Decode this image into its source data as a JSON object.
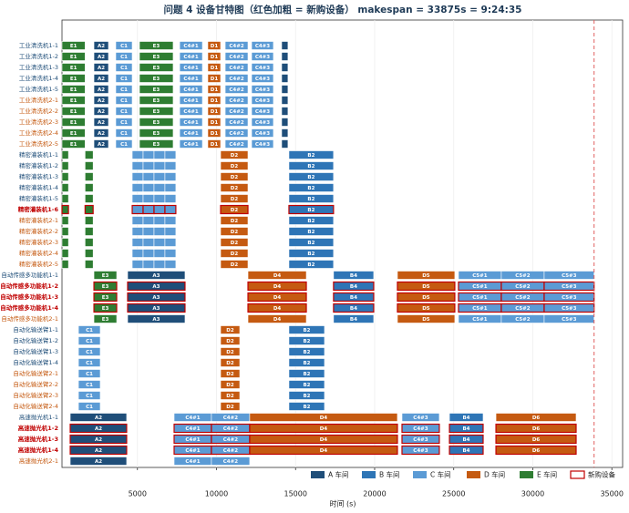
{
  "chart_data": {
    "type": "gantt",
    "title": "问题 4 设备甘特图（红色加粗 = 新购设备）   makespan = 33875s = 9:24:35",
    "x_label": "时间 (s)",
    "xlim": [
      230,
      35680
    ],
    "xticks": [
      5000,
      10000,
      15000,
      20000,
      25000,
      30000,
      35000
    ],
    "grid": true,
    "makespan": 33875,
    "makespan_color": "#e06060",
    "legend": [
      {
        "name": "A 车间",
        "color": "#1f4e79"
      },
      {
        "name": "B 车间",
        "color": "#2e75b6"
      },
      {
        "name": "C 车间",
        "color": "#5b9bd5"
      },
      {
        "name": "D 车间",
        "color": "#c55a11"
      },
      {
        "name": "E 车间",
        "color": "#2e7d32"
      },
      {
        "name": "新购设备",
        "color": "#c00000"
      }
    ],
    "groups": [
      {
        "rows": [
          {
            "name": "工业清洗机1-1",
            "color": "#1f4e79",
            "new": false
          },
          {
            "name": "工业清洗机1-2",
            "color": "#1f4e79",
            "new": false
          },
          {
            "name": "工业清洗机1-3",
            "color": "#1f4e79",
            "new": false
          },
          {
            "name": "工业清洗机1-4",
            "color": "#1f4e79",
            "new": false
          },
          {
            "name": "工业清洗机1-5",
            "color": "#1f4e79",
            "new": false
          },
          {
            "name": "工业清洗机2-1",
            "color": "#c55a11",
            "new": false
          },
          {
            "name": "工业清洗机2-2",
            "color": "#c55a11",
            "new": false
          },
          {
            "name": "工业清洗机2-3",
            "color": "#c55a11",
            "new": false
          },
          {
            "name": "工业清洗机2-4",
            "color": "#c55a11",
            "new": false
          },
          {
            "name": "工业清洗机2-5",
            "color": "#c55a11",
            "new": false
          }
        ],
        "tasks": [
          {
            "label": "E1",
            "color": "#2e7d32",
            "start": 230,
            "end": 1690
          },
          {
            "label": "A2",
            "color": "#1f4e79",
            "start": 2250,
            "end": 3170
          },
          {
            "label": "C1",
            "color": "#5b9bd5",
            "start": 3630,
            "end": 4670
          },
          {
            "label": "E3",
            "color": "#2e7d32",
            "start": 5130,
            "end": 7260
          },
          {
            "label": "C4#1",
            "color": "#5b9bd5",
            "start": 7670,
            "end": 9110
          },
          {
            "label": "D1",
            "color": "#c55a11",
            "start": 9450,
            "end": 10260
          },
          {
            "label": "C4#2",
            "color": "#5b9bd5",
            "start": 10550,
            "end": 11990
          },
          {
            "label": "C4#3",
            "color": "#5b9bd5",
            "start": 12220,
            "end": 13600
          },
          {
            "color": "#1f4e79",
            "start": 14120,
            "end": 14520
          }
        ]
      },
      {
        "rows": [
          {
            "name": "精密灌装机1-1",
            "color": "#1f4e79",
            "new": false
          },
          {
            "name": "精密灌装机1-2",
            "color": "#1f4e79",
            "new": false
          },
          {
            "name": "精密灌装机1-3",
            "color": "#1f4e79",
            "new": false
          },
          {
            "name": "精密灌装机1-4",
            "color": "#1f4e79",
            "new": false
          },
          {
            "name": "精密灌装机1-5",
            "color": "#1f4e79",
            "new": false
          },
          {
            "name": "精密灌装机1-6",
            "color": "#c00000",
            "new": true
          },
          {
            "name": "精密灌装机2-1",
            "color": "#c55a11",
            "new": false
          },
          {
            "name": "精密灌装机2-2",
            "color": "#c55a11",
            "new": false
          },
          {
            "name": "精密灌装机2-3",
            "color": "#c55a11",
            "new": false
          },
          {
            "name": "精密灌装机2-4",
            "color": "#c55a11",
            "new": false
          },
          {
            "name": "精密灌装机2-5",
            "color": "#c55a11",
            "new": false
          }
        ],
        "tasks": [
          {
            "color": "#2e7d32",
            "start": 230,
            "end": 640
          },
          {
            "color": "#2e7d32",
            "start": 1690,
            "end": 2200
          },
          {
            "color": "#5b9bd5",
            "start": 4670,
            "end": 5360
          },
          {
            "color": "#5b9bd5",
            "start": 5360,
            "end": 6050
          },
          {
            "color": "#5b9bd5",
            "start": 6050,
            "end": 6740
          },
          {
            "color": "#5b9bd5",
            "start": 6740,
            "end": 7430
          },
          {
            "label": "D2",
            "color": "#c55a11",
            "start": 10260,
            "end": 11990
          },
          {
            "label": "B2",
            "color": "#2e75b6",
            "start": 14580,
            "end": 17400
          }
        ]
      },
      {
        "rows": [
          {
            "name": "自动传感多功能机1-1",
            "color": "#1f4e79",
            "new": false
          },
          {
            "name": "自动传感多功能机1-2",
            "color": "#c00000",
            "new": true
          },
          {
            "name": "自动传感多功能机1-3",
            "color": "#c00000",
            "new": true
          },
          {
            "name": "自动传感多功能机1-4",
            "color": "#c00000",
            "new": true
          },
          {
            "name": "自动传感多功能机2-1",
            "color": "#c55a11",
            "new": false
          }
        ],
        "tasks": [
          {
            "label": "E3",
            "color": "#2e7d32",
            "start": 2250,
            "end": 3690
          },
          {
            "label": "A3",
            "color": "#1f4e79",
            "start": 4380,
            "end": 8010
          },
          {
            "label": "D4",
            "color": "#c55a11",
            "start": 11990,
            "end": 15680
          },
          {
            "label": "B4",
            "color": "#2e75b6",
            "start": 17400,
            "end": 19940
          },
          {
            "label": "D5",
            "color": "#c55a11",
            "start": 21440,
            "end": 25070
          },
          {
            "label": "C5#1",
            "color": "#5b9bd5",
            "start": 25300,
            "end": 28010
          },
          {
            "label": "C5#2",
            "color": "#5b9bd5",
            "start": 28010,
            "end": 30720
          },
          {
            "label": "C5#3",
            "color": "#5b9bd5",
            "start": 30720,
            "end": 33875
          }
        ]
      },
      {
        "rows": [
          {
            "name": "自动化输送臂1-1",
            "color": "#1f4e79",
            "new": false
          },
          {
            "name": "自动化输送臂1-2",
            "color": "#1f4e79",
            "new": false
          },
          {
            "name": "自动化输送臂1-3",
            "color": "#1f4e79",
            "new": false
          },
          {
            "name": "自动化输送臂1-4",
            "color": "#1f4e79",
            "new": false
          },
          {
            "name": "自动化输送臂2-1",
            "color": "#c55a11",
            "new": false
          },
          {
            "name": "自动化输送臂2-2",
            "color": "#c55a11",
            "new": false
          },
          {
            "name": "自动化输送臂2-3",
            "color": "#c55a11",
            "new": false
          },
          {
            "name": "自动化输送臂2-4",
            "color": "#c55a11",
            "new": false
          }
        ],
        "tasks": [
          {
            "label": "C1",
            "color": "#5b9bd5",
            "start": 1270,
            "end": 2650
          },
          {
            "label": "D2",
            "color": "#c55a11",
            "start": 10260,
            "end": 11470
          },
          {
            "label": "B2",
            "color": "#2e75b6",
            "start": 14580,
            "end": 16830
          }
        ]
      },
      {
        "rows": [
          {
            "name": "高速抛光机1-1",
            "color": "#1f4e79",
            "new": false
          },
          {
            "name": "高速抛光机1-2",
            "color": "#c00000",
            "new": true
          },
          {
            "name": "高速抛光机1-3",
            "color": "#c00000",
            "new": true
          },
          {
            "name": "高速抛光机1-4",
            "color": "#c00000",
            "new": true
          }
        ],
        "tasks": [
          {
            "label": "A2",
            "color": "#1f4e79",
            "start": 750,
            "end": 4320
          },
          {
            "label": "C4#1",
            "color": "#5b9bd5",
            "start": 7320,
            "end": 9680
          },
          {
            "label": "C4#2",
            "color": "#5b9bd5",
            "start": 9680,
            "end": 12100
          },
          {
            "label": "D4",
            "color": "#c55a11",
            "start": 12100,
            "end": 21440
          },
          {
            "label": "C4#3",
            "color": "#5b9bd5",
            "start": 21730,
            "end": 24090
          },
          {
            "label": "B4",
            "color": "#2e75b6",
            "start": 24730,
            "end": 26860
          },
          {
            "label": "D6",
            "color": "#c55a11",
            "start": 27670,
            "end": 32740
          }
        ]
      },
      {
        "rows": [
          {
            "name": "高速抛光机2-1",
            "color": "#c55a11",
            "new": false
          }
        ],
        "tasks": [
          {
            "label": "A2",
            "color": "#1f4e79",
            "start": 750,
            "end": 4320
          },
          {
            "label": "C4#1",
            "color": "#5b9bd5",
            "start": 7320,
            "end": 9680
          },
          {
            "label": "C4#2",
            "color": "#5b9bd5",
            "start": 9680,
            "end": 12100
          }
        ]
      }
    ]
  }
}
